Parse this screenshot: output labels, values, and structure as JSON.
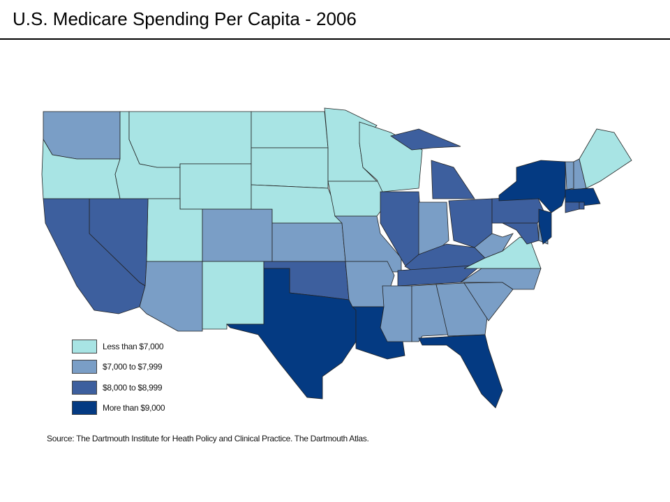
{
  "title": "U.S. Medicare Spending Per Capita - 2006",
  "legend": [
    {
      "label": "Less than $7,000",
      "color": "#a8e4e4"
    },
    {
      "label": "$7,000 to $7,999",
      "color": "#7a9ec6"
    },
    {
      "label": "$8,000 to $8,999",
      "color": "#3d5f9e"
    },
    {
      "label": "More than $9,000",
      "color": "#043a82"
    }
  ],
  "states": {
    "WA": 1,
    "OR": 0,
    "ID": 0,
    "MT": 0,
    "WY": 0,
    "UT": 0,
    "NV": 2,
    "CA": 2,
    "AZ": 1,
    "CO": 1,
    "NM": 0,
    "ND": 0,
    "SD": 0,
    "NE": 0,
    "KS": 1,
    "OK": 2,
    "TX": 3,
    "MN": 0,
    "IA": 0,
    "MO": 1,
    "AR": 1,
    "LA": 3,
    "WI": 0,
    "IL": 2,
    "IN": 1,
    "MI": 2,
    "OH": 2,
    "KY": 2,
    "TN": 2,
    "MS": 1,
    "AL": 1,
    "GA": 1,
    "FL": 3,
    "SC": 1,
    "NC": 1,
    "VA": 0,
    "WV": 1,
    "PA": 2,
    "MD": 2,
    "DE": 1,
    "NJ": 3,
    "NY": 3,
    "VT": 1,
    "NH": 1,
    "MA": 3,
    "CT": 2,
    "RI": 2,
    "ME": 0
  },
  "source": "Source: The Dartmouth Institute for Heath Policy and Clinical Practice. The Dartmouth Atlas."
}
